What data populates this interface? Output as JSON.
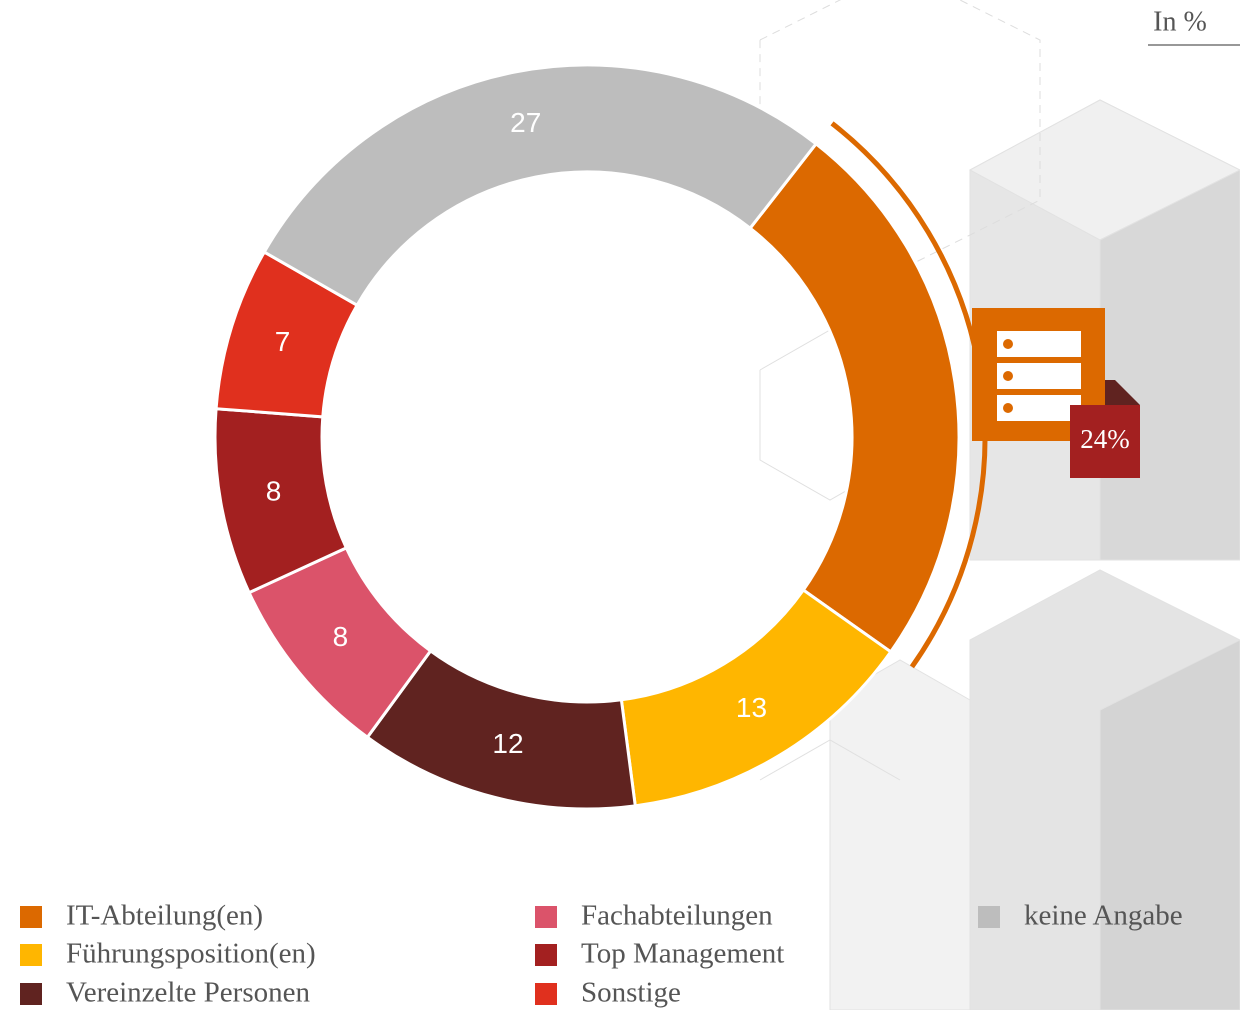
{
  "chart_data": {
    "type": "donut",
    "unit": "In %",
    "categories": [
      "IT-Abteilung(en)",
      "Führungsposition(en)",
      "Vereinzelte Personen",
      "Fachabteilungen",
      "Top Management",
      "Sonstige",
      "keine Angabe"
    ],
    "values": [
      24,
      13,
      12,
      8,
      8,
      7,
      27
    ],
    "value_labels": [
      "24%",
      "13",
      "12",
      "8",
      "8",
      "7",
      "27"
    ],
    "colors": [
      "#dc6900",
      "#ffb600",
      "#602320",
      "#db536a",
      "#a32020",
      "#e0301e",
      "#bdbdbd"
    ]
  }
}
